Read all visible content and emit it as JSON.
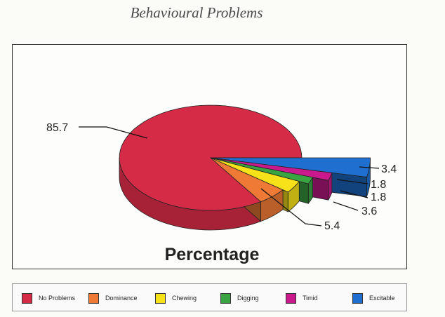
{
  "chart_data": {
    "type": "pie",
    "title": "",
    "subtitle": "Behavioural Problems",
    "xlabel": "Percentage",
    "categories": [
      "No Problems",
      "Dominance",
      "Chewing",
      "Digging",
      "Timid",
      "Excitable"
    ],
    "values": [
      85.7,
      5.4,
      3.6,
      1.8,
      1.8,
      3.4
    ],
    "data_labels": [
      "85.7",
      "5.4",
      "3.6",
      "1.8",
      "1.8",
      "3.4"
    ],
    "colors": [
      "#d62b47",
      "#ee7a35",
      "#f7e21a",
      "#3aa342",
      "#c9198d",
      "#1f6fd1"
    ],
    "exploded": [
      "Dominance",
      "Chewing",
      "Digging",
      "Timid",
      "Excitable"
    ],
    "legend_position": "bottom",
    "grid": false,
    "three_d": true
  }
}
